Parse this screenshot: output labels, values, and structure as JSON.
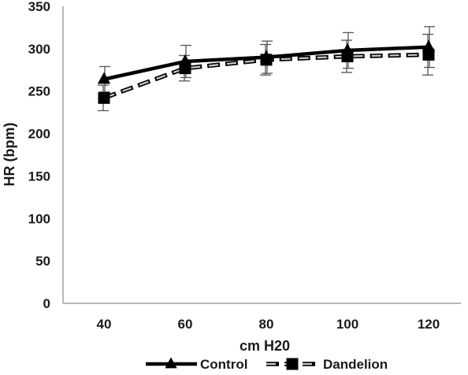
{
  "chart_data": {
    "type": "line",
    "title": "",
    "xlabel": "cm H20",
    "ylabel": "HR (bpm)",
    "x": [
      40,
      60,
      80,
      100,
      120
    ],
    "ylim": [
      0,
      350
    ],
    "yticks": [
      0,
      50,
      100,
      150,
      200,
      250,
      300,
      350
    ],
    "grid": false,
    "legend_position": "bottom",
    "series": [
      {
        "name": "Control",
        "marker": "triangle",
        "line_style": "solid",
        "color": "#000000",
        "values": [
          264,
          285,
          290,
          298,
          302
        ],
        "error": [
          15,
          19,
          19,
          21,
          24
        ]
      },
      {
        "name": "Dandelion",
        "marker": "square",
        "line_style": "dashed",
        "color": "#000000",
        "values": [
          242,
          277,
          287,
          291,
          293
        ],
        "error": [
          15,
          15,
          18,
          19,
          24
        ]
      }
    ]
  }
}
